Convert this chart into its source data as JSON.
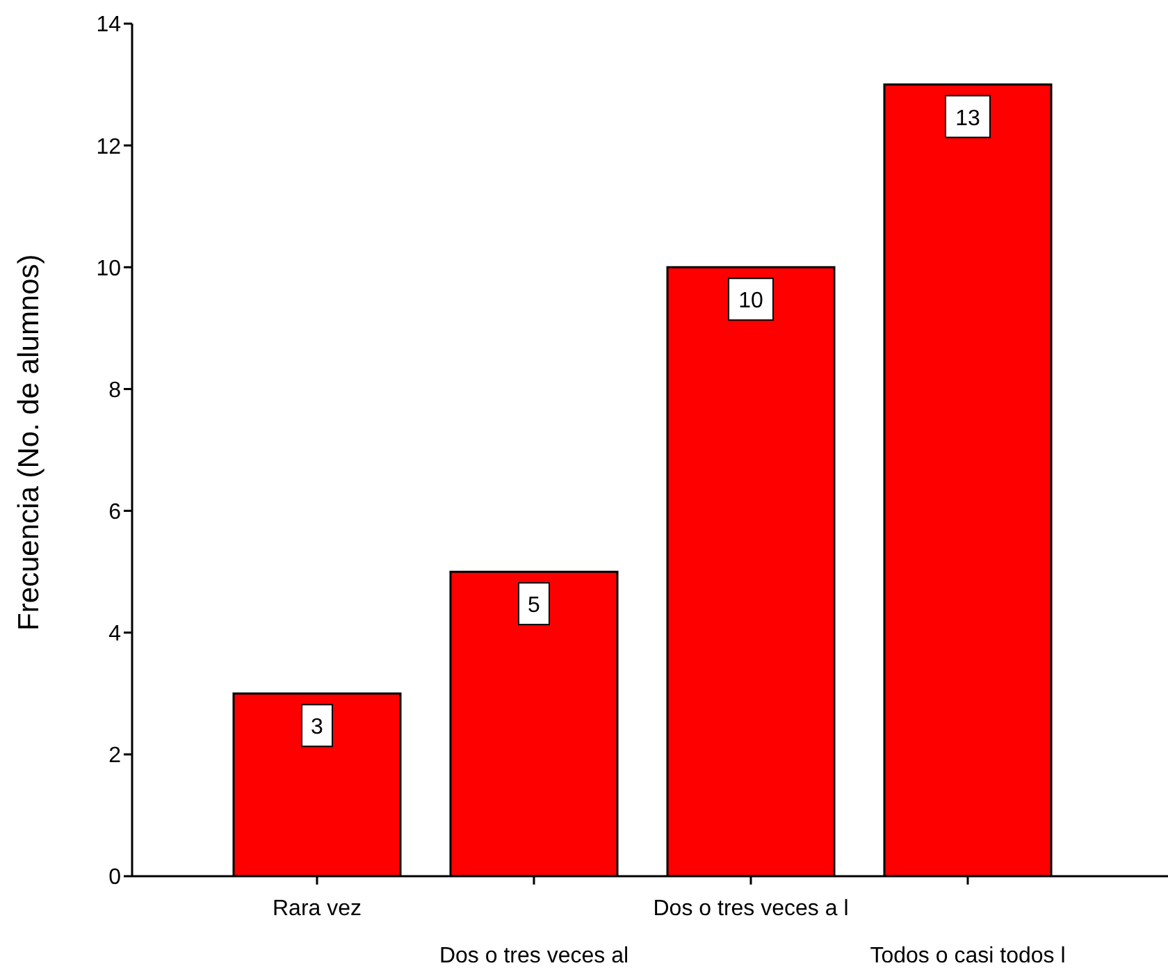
{
  "chart_data": {
    "type": "bar",
    "ylabel": "Frecuencia (No. de alumnos)",
    "categories": [
      "Rara vez",
      "Dos o tres veces al",
      "Dos o tres veces a l",
      "Todos o casi todos l"
    ],
    "values": [
      3,
      5,
      10,
      13
    ],
    "color": "#ff0000",
    "ylim": [
      0,
      14
    ],
    "yticks": [
      0,
      2,
      4,
      6,
      8,
      10,
      12,
      14
    ],
    "grid": false,
    "data_labels": true
  }
}
